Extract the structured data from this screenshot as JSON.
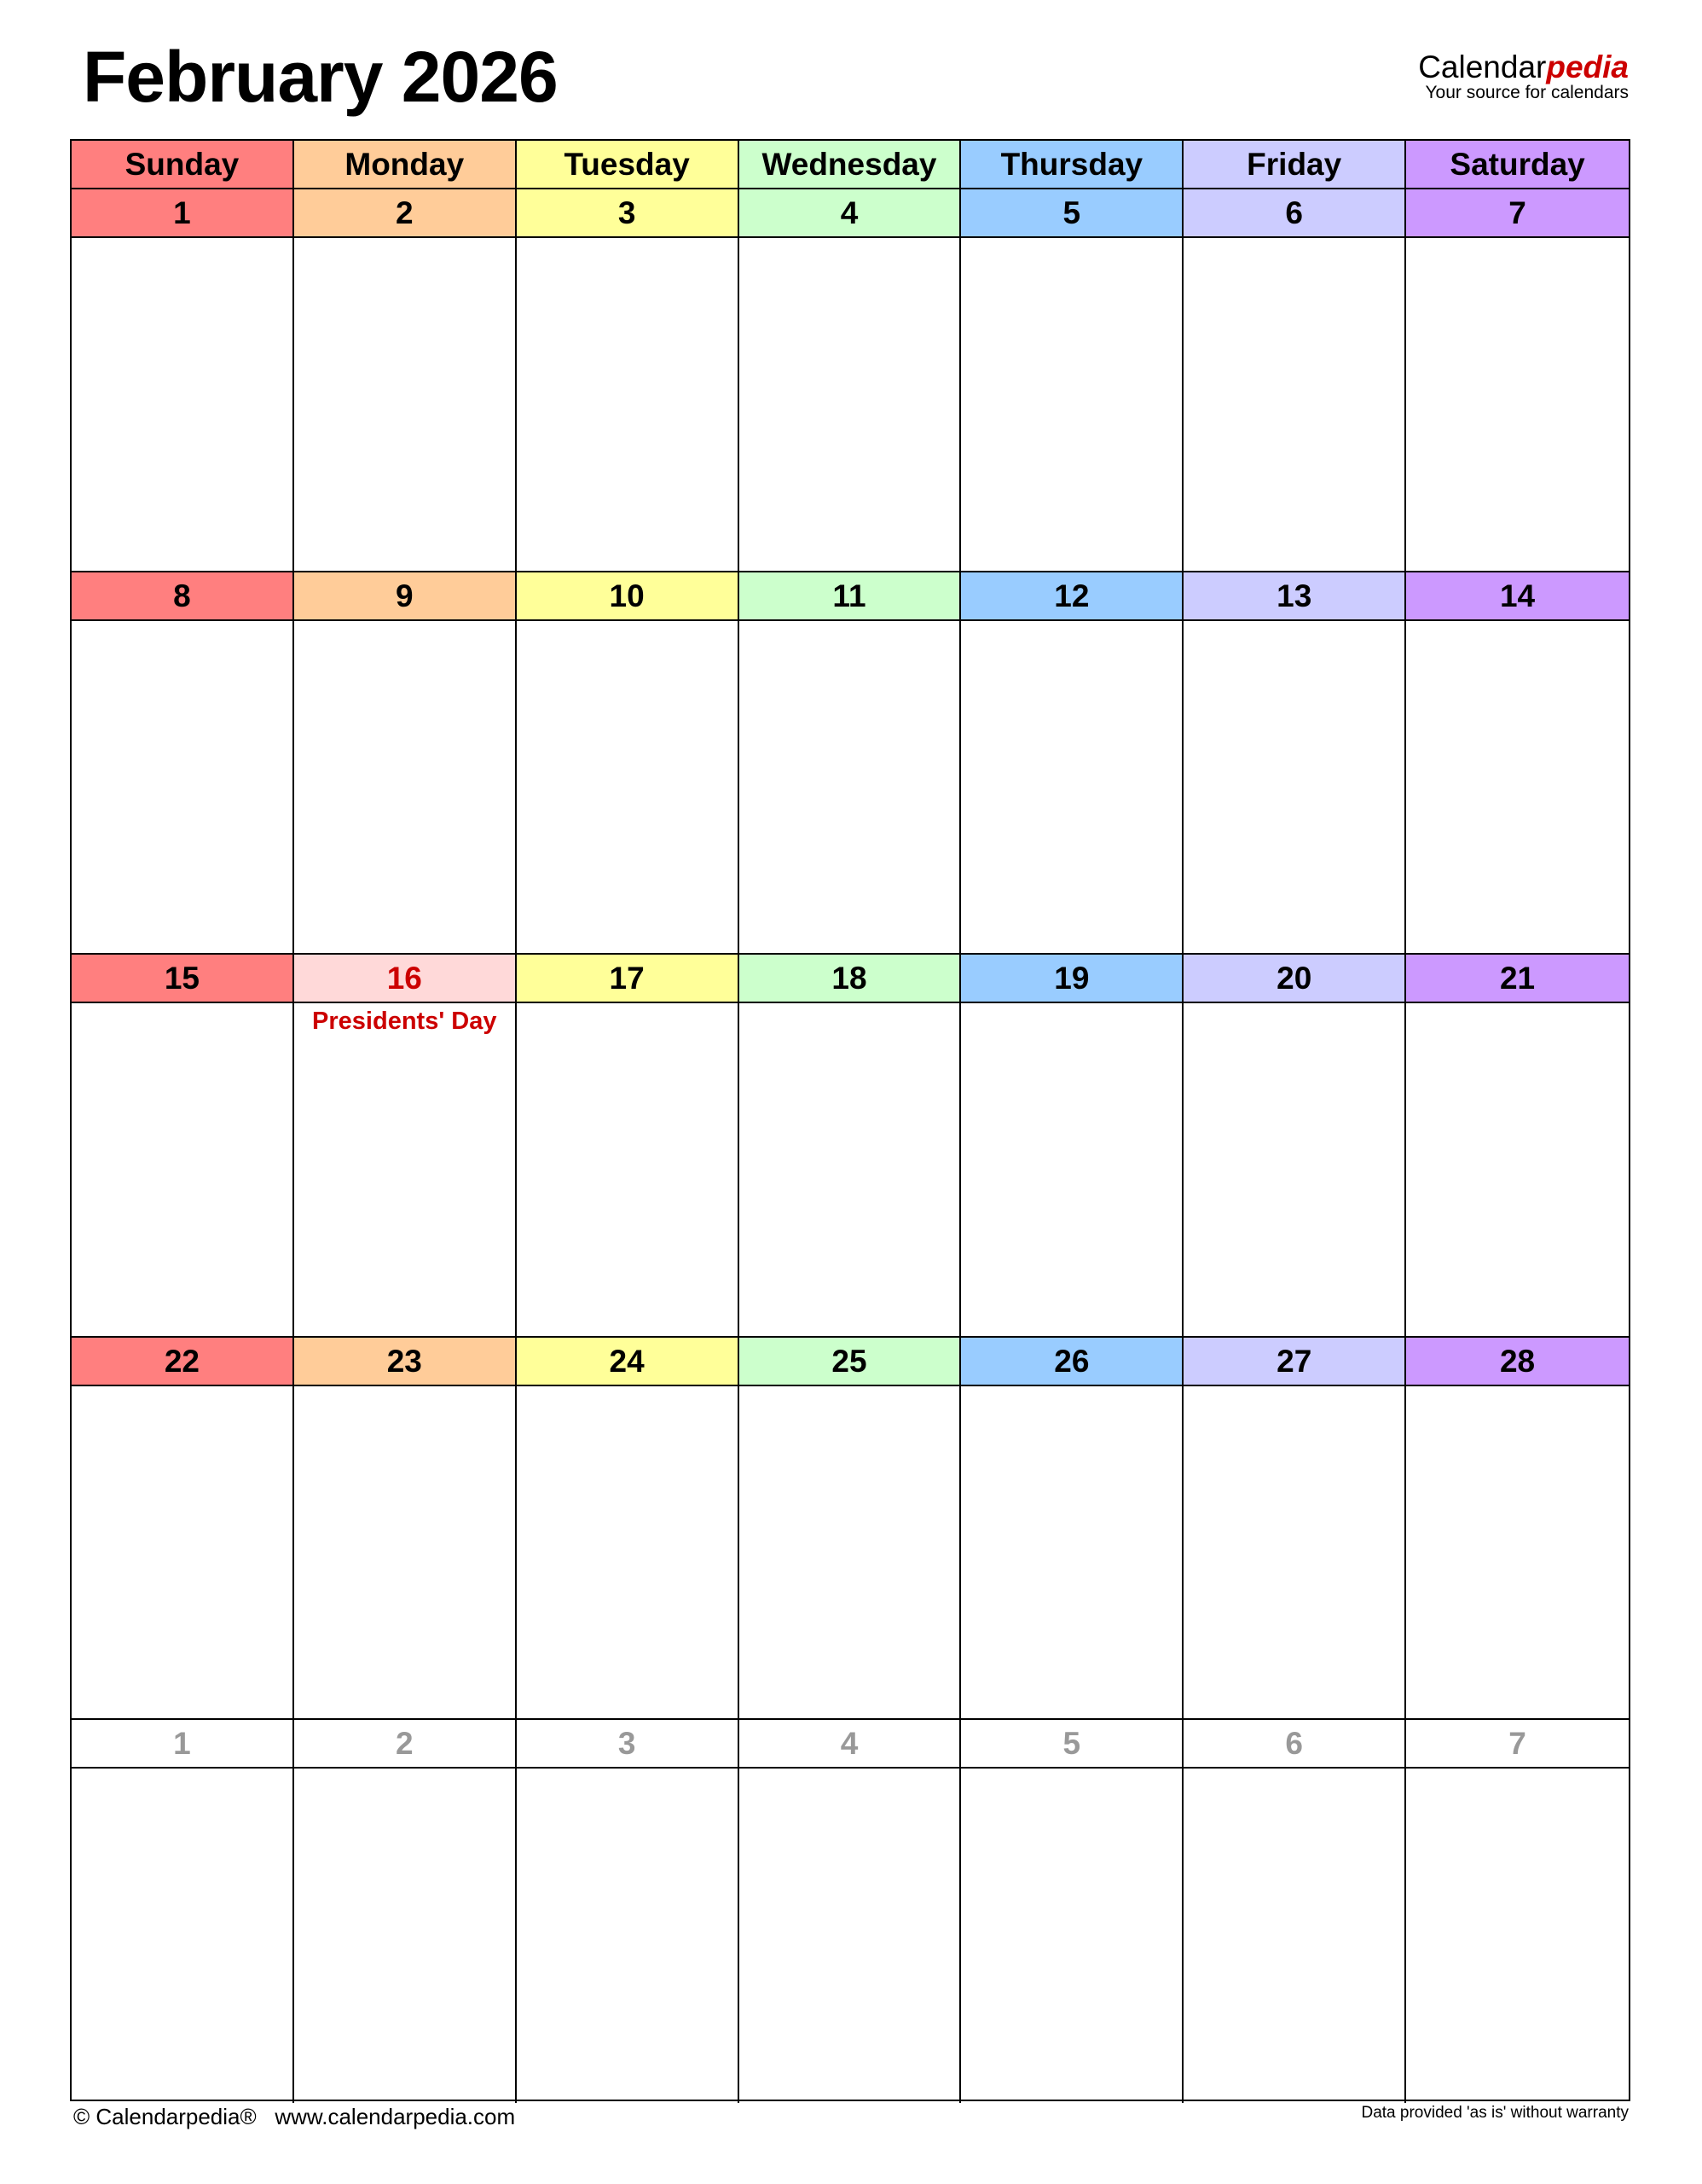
{
  "title": "February 2026",
  "logo": {
    "brand_main": "Calendar",
    "brand_accent": "pedia",
    "tagline": "Your source for calendars"
  },
  "colors": {
    "days": [
      "#FF7F7F",
      "#FFCC99",
      "#FFFF99",
      "#CCFFCC",
      "#99CCFF",
      "#CCCCFF",
      "#CC99FF"
    ],
    "holiday_bg": "#FFD9D9",
    "holiday_text": "#CC0000",
    "other_month_text": "#999999"
  },
  "weekdays": [
    "Sunday",
    "Monday",
    "Tuesday",
    "Wednesday",
    "Thursday",
    "Friday",
    "Saturday"
  ],
  "weeks": [
    [
      {
        "d": "1"
      },
      {
        "d": "2"
      },
      {
        "d": "3"
      },
      {
        "d": "4"
      },
      {
        "d": "5"
      },
      {
        "d": "6"
      },
      {
        "d": "7"
      }
    ],
    [
      {
        "d": "8"
      },
      {
        "d": "9"
      },
      {
        "d": "10"
      },
      {
        "d": "11"
      },
      {
        "d": "12"
      },
      {
        "d": "13"
      },
      {
        "d": "14"
      }
    ],
    [
      {
        "d": "15"
      },
      {
        "d": "16",
        "holiday": "Presidents' Day"
      },
      {
        "d": "17"
      },
      {
        "d": "18"
      },
      {
        "d": "19"
      },
      {
        "d": "20"
      },
      {
        "d": "21"
      }
    ],
    [
      {
        "d": "22"
      },
      {
        "d": "23"
      },
      {
        "d": "24"
      },
      {
        "d": "25"
      },
      {
        "d": "26"
      },
      {
        "d": "27"
      },
      {
        "d": "28"
      }
    ],
    [
      {
        "d": "1",
        "other": true
      },
      {
        "d": "2",
        "other": true
      },
      {
        "d": "3",
        "other": true
      },
      {
        "d": "4",
        "other": true
      },
      {
        "d": "5",
        "other": true
      },
      {
        "d": "6",
        "other": true
      },
      {
        "d": "7",
        "other": true
      }
    ]
  ],
  "footer": {
    "copyright": "© Calendarpedia®   www.calendarpedia.com",
    "disclaimer": "Data provided 'as is' without warranty"
  }
}
